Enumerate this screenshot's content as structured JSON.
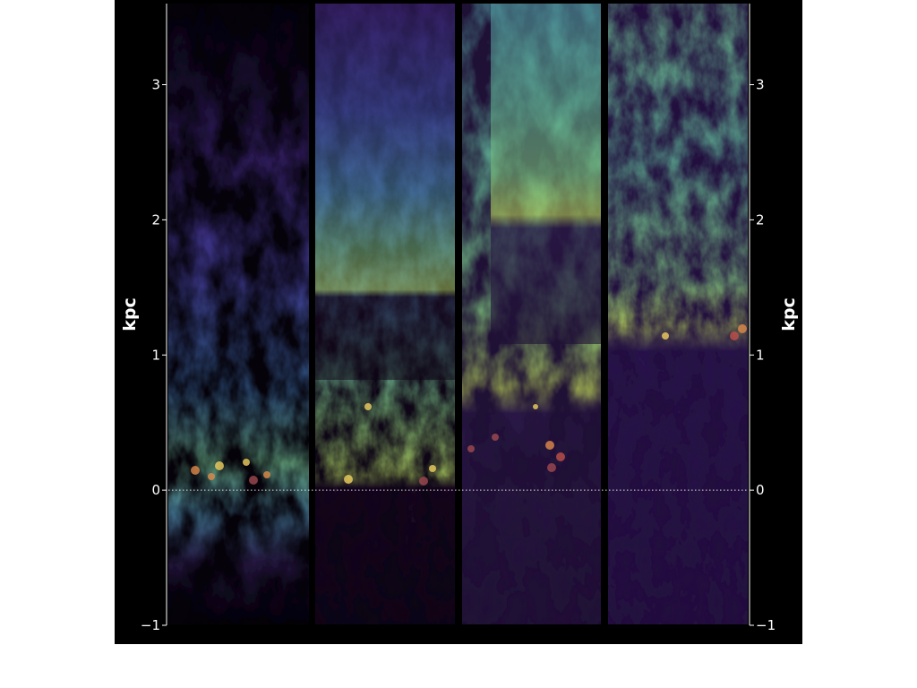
{
  "axis_unit": "kpc",
  "y_axis": {
    "range": [
      -1,
      3.6
    ],
    "ticks": [
      -1,
      0,
      1,
      2,
      3
    ],
    "tick_labels": [
      "−1",
      "0",
      "1",
      "2",
      "3"
    ],
    "reference_line_value": 0
  },
  "panels": [
    {
      "id": "panel-1",
      "description": "diffuse purple-blue plume with green base"
    },
    {
      "id": "panel-2",
      "description": "blue-green turbulent column"
    },
    {
      "id": "panel-3",
      "description": "green-yellow turbulent column"
    },
    {
      "id": "panel-4",
      "description": "green clumpy layer above purple region"
    }
  ],
  "colors": {
    "background": "#000000",
    "low": "#3b1f6e",
    "mid": "#3f6fb0",
    "high": "#7cc07a",
    "peak": "#d6d64c",
    "source_points": "#e08a4a"
  }
}
